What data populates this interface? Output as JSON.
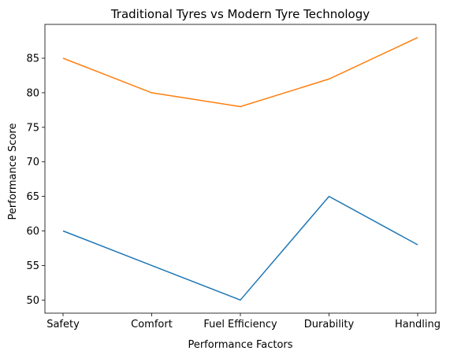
{
  "chart_data": {
    "type": "line",
    "title": "Traditional Tyres vs Modern Tyre Technology",
    "xlabel": "Performance Factors",
    "ylabel": "Performance Score",
    "categories": [
      "Safety",
      "Comfort",
      "Fuel Efficiency",
      "Durability",
      "Handling"
    ],
    "series": [
      {
        "values": [
          60,
          55,
          50,
          65,
          58
        ],
        "color": "#1f77b4"
      },
      {
        "values": [
          85,
          80,
          78,
          82,
          88
        ],
        "color": "#ff7f0e"
      }
    ],
    "ylim": [
      48.1,
      89.9
    ],
    "yticks": [
      50,
      55,
      60,
      65,
      70,
      75,
      80,
      85
    ],
    "grid": false,
    "legend": "none"
  }
}
